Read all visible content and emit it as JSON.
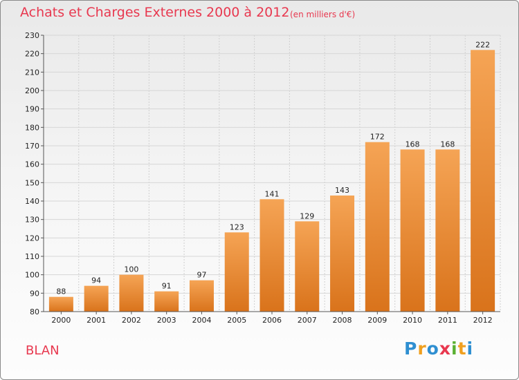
{
  "header": {
    "title": "Achats et Charges Externes 2000 à 2012",
    "subtitle": "(en milliers d'€)"
  },
  "footer": {
    "place": "BLAN",
    "logo_letters": [
      "P",
      "r",
      "o",
      "x",
      "i",
      "t",
      "i"
    ]
  },
  "colors": {
    "bar_top": "#f5a455",
    "bar_bottom": "#d9731b",
    "title": "#e8384f"
  },
  "chart_data": {
    "type": "bar",
    "title": "Achats et Charges Externes 2000 à 2012",
    "subtitle": "(en milliers d'€)",
    "xlabel": "",
    "ylabel": "",
    "categories": [
      "2000",
      "2001",
      "2002",
      "2003",
      "2004",
      "2005",
      "2006",
      "2007",
      "2008",
      "2009",
      "2010",
      "2011",
      "2012"
    ],
    "values": [
      88,
      94,
      100,
      91,
      97,
      123,
      141,
      129,
      143,
      172,
      168,
      168,
      222
    ],
    "ylim": [
      80,
      230
    ],
    "yticks": [
      80,
      90,
      100,
      110,
      120,
      130,
      140,
      150,
      160,
      170,
      180,
      190,
      200,
      210,
      220,
      230
    ],
    "grid": true
  }
}
